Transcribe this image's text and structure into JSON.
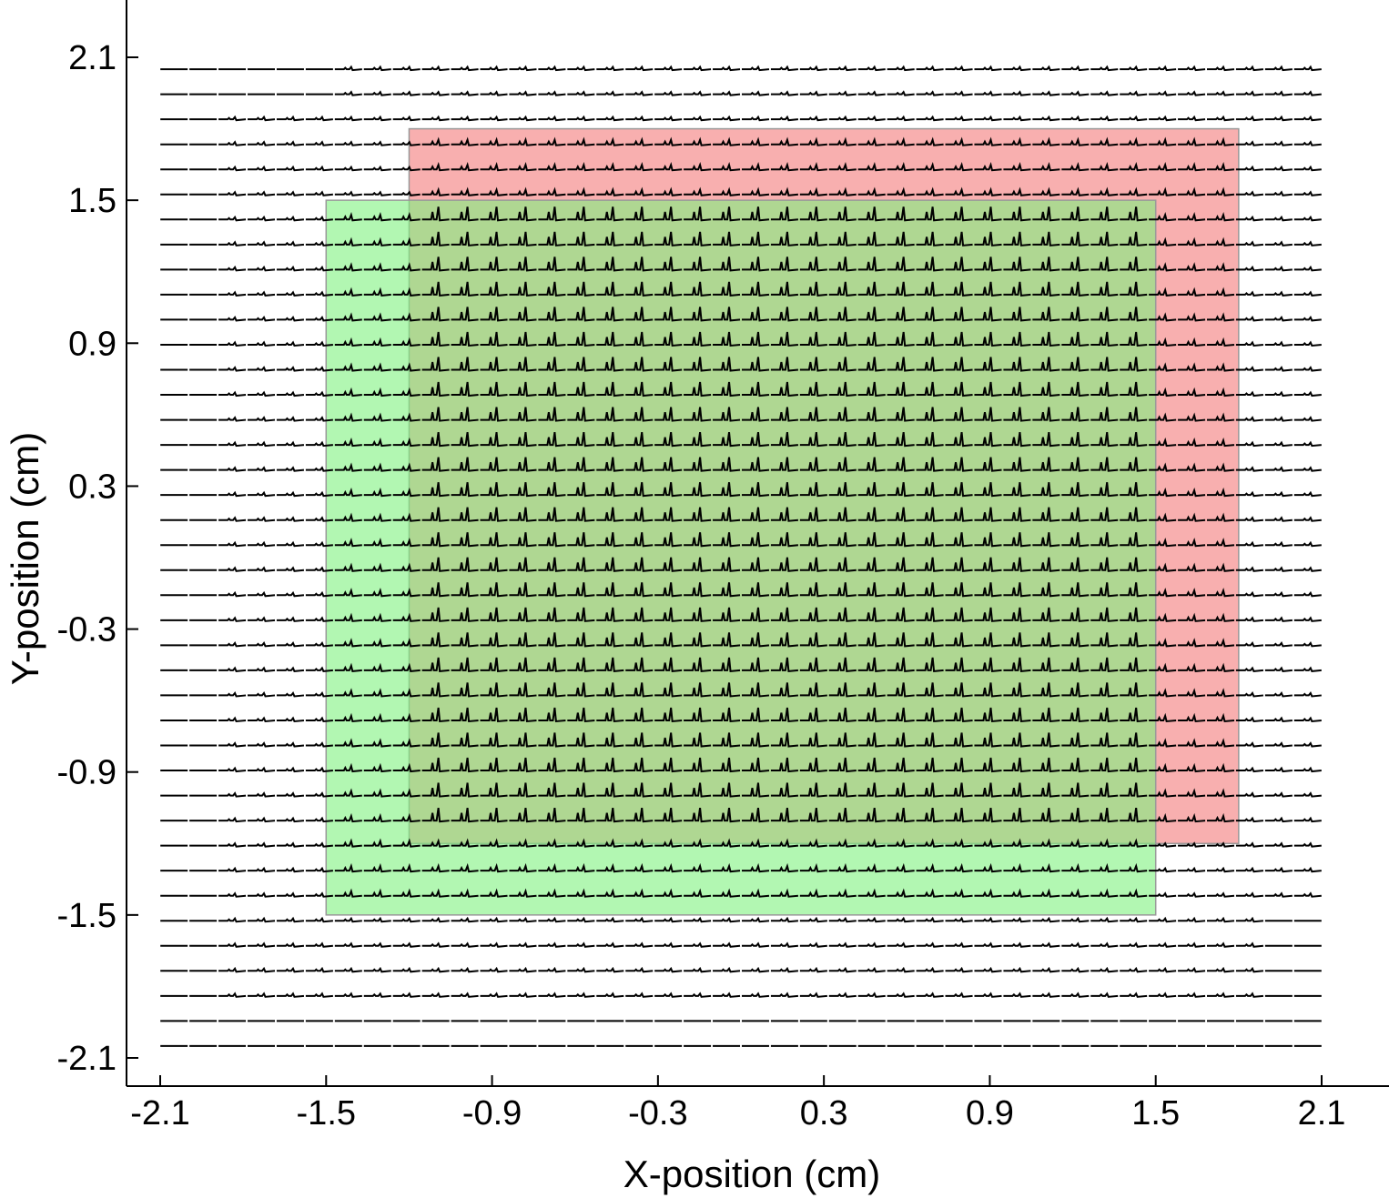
{
  "chart_data": {
    "type": "scatter",
    "xlabel": "X-position (cm)",
    "ylabel": "Y-position (cm)",
    "xlim": [
      -2.2,
      2.4
    ],
    "ylim": [
      -2.2,
      2.2
    ],
    "xticks": [
      -2.1,
      -1.5,
      -0.9,
      -0.3,
      0.3,
      0.9,
      1.5,
      2.1
    ],
    "yticks": [
      2.1,
      1.5,
      0.9,
      0.3,
      -0.3,
      -0.9,
      -1.5,
      -2.1
    ],
    "xtick_labels": [
      "-2.1",
      "-1.5",
      "-0.9",
      "-0.3",
      "0.3",
      "0.9",
      "1.5",
      "2.1"
    ],
    "ytick_labels": [
      "2.1",
      "1.5",
      "0.9",
      "0.3",
      "-0.3",
      "-0.9",
      "-1.5",
      "-2.1"
    ],
    "grid": false,
    "trace_grid": {
      "x_range": [
        -2.05,
        2.05
      ],
      "y_range": [
        -2.05,
        2.05
      ],
      "columns": 40,
      "rows": 40,
      "trace_color": "#000000"
    },
    "regions": [
      {
        "color": "#f47a7a",
        "opacity": 0.6,
        "x": [
          -1.2,
          1.8
        ],
        "y": [
          -1.2,
          1.8
        ]
      },
      {
        "color": "#7ef27e",
        "opacity": 0.6,
        "x": [
          -1.5,
          1.5
        ],
        "y": [
          -1.5,
          1.5
        ]
      }
    ]
  }
}
